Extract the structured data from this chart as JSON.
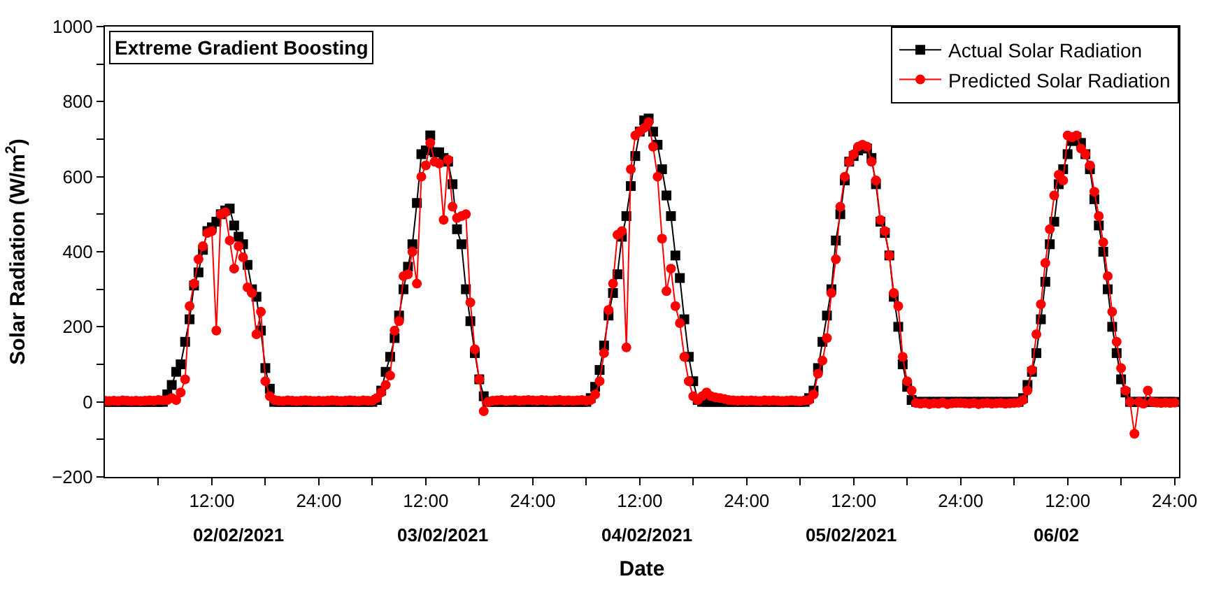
{
  "chart_data": {
    "type": "line",
    "title": "Extreme Gradient Boosting",
    "xlabel": "Date",
    "ylabel": "Solar Radiation (W/m$^{2}$)",
    "annotations": [
      "02/02/2021",
      "03/02/2021",
      "04/02/2021",
      "05/02/2021",
      "06/02"
    ],
    "x": [
      "2021-02-02T00:00",
      "2021-02-02T00:30",
      "2021-02-02T01:00",
      "2021-02-02T01:30",
      "2021-02-02T02:00",
      "2021-02-02T02:30",
      "2021-02-02T03:00",
      "2021-02-02T03:30",
      "2021-02-02T04:00",
      "2021-02-02T04:30",
      "2021-02-02T05:00",
      "2021-02-02T05:30",
      "2021-02-02T06:00",
      "2021-02-02T06:30",
      "2021-02-02T07:00",
      "2021-02-02T07:30",
      "2021-02-02T08:00",
      "2021-02-02T08:30",
      "2021-02-02T09:00",
      "2021-02-02T09:30",
      "2021-02-02T10:00",
      "2021-02-02T10:30",
      "2021-02-02T11:00",
      "2021-02-02T11:30",
      "2021-02-02T12:00",
      "2021-02-02T12:30",
      "2021-02-02T13:00",
      "2021-02-02T13:30",
      "2021-02-02T14:00",
      "2021-02-02T14:30",
      "2021-02-02T15:00",
      "2021-02-02T15:30",
      "2021-02-02T16:00",
      "2021-02-02T16:30",
      "2021-02-02T17:00",
      "2021-02-02T17:30",
      "2021-02-02T18:00",
      "2021-02-02T18:30",
      "2021-02-02T19:00",
      "2021-02-02T19:30",
      "2021-02-02T20:00",
      "2021-02-02T20:30",
      "2021-02-02T21:00",
      "2021-02-02T21:30",
      "2021-02-02T22:00",
      "2021-02-02T22:30",
      "2021-02-02T23:00",
      "2021-02-02T23:30",
      "2021-02-03T00:00",
      "2021-02-03T00:30",
      "2021-02-03T01:00",
      "2021-02-03T01:30",
      "2021-02-03T02:00",
      "2021-02-03T02:30",
      "2021-02-03T03:00",
      "2021-02-03T03:30",
      "2021-02-03T04:00",
      "2021-02-03T04:30",
      "2021-02-03T05:00",
      "2021-02-03T05:30",
      "2021-02-03T06:00",
      "2021-02-03T06:30",
      "2021-02-03T07:00",
      "2021-02-03T07:30",
      "2021-02-03T08:00",
      "2021-02-03T08:30",
      "2021-02-03T09:00",
      "2021-02-03T09:30",
      "2021-02-03T10:00",
      "2021-02-03T10:30",
      "2021-02-03T11:00",
      "2021-02-03T11:30",
      "2021-02-03T12:00",
      "2021-02-03T12:30",
      "2021-02-03T13:00",
      "2021-02-03T13:30",
      "2021-02-03T14:00",
      "2021-02-03T14:30",
      "2021-02-03T15:00",
      "2021-02-03T15:30",
      "2021-02-03T16:00",
      "2021-02-03T16:30",
      "2021-02-03T17:00",
      "2021-02-03T17:30",
      "2021-02-03T18:00",
      "2021-02-03T18:30",
      "2021-02-03T19:00",
      "2021-02-03T19:30",
      "2021-02-03T20:00",
      "2021-02-03T20:30",
      "2021-02-03T21:00",
      "2021-02-03T21:30",
      "2021-02-03T22:00",
      "2021-02-03T22:30",
      "2021-02-03T23:00",
      "2021-02-03T23:30",
      "2021-02-04T00:00",
      "2021-02-04T00:30",
      "2021-02-04T01:00",
      "2021-02-04T01:30",
      "2021-02-04T02:00",
      "2021-02-04T02:30",
      "2021-02-04T03:00",
      "2021-02-04T03:30",
      "2021-02-04T04:00",
      "2021-02-04T04:30",
      "2021-02-04T05:00",
      "2021-02-04T05:30",
      "2021-02-04T06:00",
      "2021-02-04T06:30",
      "2021-02-04T07:00",
      "2021-02-04T07:30",
      "2021-02-04T08:00",
      "2021-02-04T08:30",
      "2021-02-04T09:00",
      "2021-02-04T09:30",
      "2021-02-04T10:00",
      "2021-02-04T10:30",
      "2021-02-04T11:00",
      "2021-02-04T11:30",
      "2021-02-04T12:00",
      "2021-02-04T12:30",
      "2021-02-04T13:00",
      "2021-02-04T13:30",
      "2021-02-04T14:00",
      "2021-02-04T14:30",
      "2021-02-04T15:00",
      "2021-02-04T15:30",
      "2021-02-04T16:00",
      "2021-02-04T16:30",
      "2021-02-04T17:00",
      "2021-02-04T17:30",
      "2021-02-04T18:00",
      "2021-02-04T18:30",
      "2021-02-04T19:00",
      "2021-02-04T19:30",
      "2021-02-04T20:00",
      "2021-02-04T20:30",
      "2021-02-04T21:00",
      "2021-02-04T21:30",
      "2021-02-04T22:00",
      "2021-02-04T22:30",
      "2021-02-04T23:00",
      "2021-02-04T23:30",
      "2021-02-05T00:00",
      "2021-02-05T00:30",
      "2021-02-05T01:00",
      "2021-02-05T01:30",
      "2021-02-05T02:00",
      "2021-02-05T02:30",
      "2021-02-05T03:00",
      "2021-02-05T03:30",
      "2021-02-05T04:00",
      "2021-02-05T04:30",
      "2021-02-05T05:00",
      "2021-02-05T05:30",
      "2021-02-05T06:00",
      "2021-02-05T06:30",
      "2021-02-05T07:00",
      "2021-02-05T07:30",
      "2021-02-05T08:00",
      "2021-02-05T08:30",
      "2021-02-05T09:00",
      "2021-02-05T09:30",
      "2021-02-05T10:00",
      "2021-02-05T10:30",
      "2021-02-05T11:00",
      "2021-02-05T11:30",
      "2021-02-05T12:00",
      "2021-02-05T12:30",
      "2021-02-05T13:00",
      "2021-02-05T13:30",
      "2021-02-05T14:00",
      "2021-02-05T14:30",
      "2021-02-05T15:00",
      "2021-02-05T15:30",
      "2021-02-05T16:00",
      "2021-02-05T16:30",
      "2021-02-05T17:00",
      "2021-02-05T17:30",
      "2021-02-05T18:00",
      "2021-02-05T18:30",
      "2021-02-05T19:00",
      "2021-02-05T19:30",
      "2021-02-05T20:00",
      "2021-02-05T20:30",
      "2021-02-05T21:00",
      "2021-02-05T21:30",
      "2021-02-05T22:00",
      "2021-02-05T22:30",
      "2021-02-05T23:00",
      "2021-02-05T23:30",
      "2021-02-06T00:00",
      "2021-02-06T00:30",
      "2021-02-06T01:00",
      "2021-02-06T01:30",
      "2021-02-06T02:00",
      "2021-02-06T02:30",
      "2021-02-06T03:00",
      "2021-02-06T03:30",
      "2021-02-06T04:00",
      "2021-02-06T04:30",
      "2021-02-06T05:00",
      "2021-02-06T05:30",
      "2021-02-06T06:00",
      "2021-02-06T06:30",
      "2021-02-06T07:00",
      "2021-02-06T07:30",
      "2021-02-06T08:00",
      "2021-02-06T08:30",
      "2021-02-06T09:00",
      "2021-02-06T09:30",
      "2021-02-06T10:00",
      "2021-02-06T10:30",
      "2021-02-06T11:00",
      "2021-02-06T11:30",
      "2021-02-06T12:00",
      "2021-02-06T12:30",
      "2021-02-06T13:00",
      "2021-02-06T13:30",
      "2021-02-06T14:00",
      "2021-02-06T14:30",
      "2021-02-06T15:00",
      "2021-02-06T15:30",
      "2021-02-06T16:00",
      "2021-02-06T16:30",
      "2021-02-06T17:00",
      "2021-02-06T17:30",
      "2021-02-06T18:00",
      "2021-02-06T18:30",
      "2021-02-06T19:00",
      "2021-02-06T19:30",
      "2021-02-06T20:00",
      "2021-02-06T20:30",
      "2021-02-06T21:00",
      "2021-02-06T21:30",
      "2021-02-06T22:00",
      "2021-02-06T22:30",
      "2021-02-06T23:00",
      "2021-02-06T23:30",
      "2021-02-07T00:00"
    ],
    "series": [
      {
        "name": "Actual Solar Radiation",
        "color": "#000000",
        "marker": "square",
        "values": [
          0,
          0,
          0,
          0,
          0,
          0,
          0,
          0,
          0,
          0,
          0,
          0,
          0,
          0,
          20,
          45,
          80,
          100,
          160,
          220,
          310,
          345,
          405,
          455,
          465,
          480,
          500,
          510,
          515,
          470,
          440,
          420,
          365,
          300,
          280,
          190,
          90,
          35,
          0,
          0,
          0,
          0,
          0,
          0,
          0,
          0,
          0,
          0,
          0,
          0,
          0,
          0,
          0,
          0,
          0,
          0,
          0,
          0,
          0,
          0,
          0,
          5,
          30,
          80,
          120,
          170,
          230,
          300,
          360,
          420,
          530,
          660,
          670,
          710,
          665,
          665,
          650,
          640,
          580,
          460,
          420,
          300,
          215,
          130,
          60,
          15,
          0,
          0,
          0,
          0,
          0,
          0,
          0,
          0,
          0,
          0,
          0,
          0,
          0,
          0,
          0,
          0,
          0,
          0,
          0,
          0,
          0,
          0,
          0,
          10,
          40,
          85,
          150,
          230,
          290,
          340,
          440,
          495,
          575,
          655,
          720,
          750,
          755,
          720,
          685,
          620,
          550,
          495,
          390,
          330,
          220,
          120,
          55,
          5,
          0,
          0,
          0,
          0,
          0,
          0,
          0,
          0,
          0,
          0,
          0,
          0,
          0,
          0,
          0,
          0,
          0,
          0,
          0,
          0,
          0,
          0,
          0,
          0,
          10,
          30,
          90,
          160,
          230,
          300,
          430,
          500,
          590,
          640,
          655,
          670,
          680,
          675,
          650,
          580,
          480,
          450,
          390,
          280,
          200,
          100,
          40,
          5,
          0,
          0,
          0,
          0,
          0,
          0,
          0,
          0,
          0,
          0,
          0,
          0,
          0,
          0,
          0,
          0,
          0,
          0,
          0,
          0,
          0,
          0,
          0,
          0,
          10,
          45,
          80,
          130,
          220,
          320,
          420,
          480,
          580,
          620,
          660,
          695,
          705,
          690,
          660,
          620,
          540,
          470,
          400,
          300,
          200,
          130,
          60,
          25,
          0,
          0,
          0,
          0,
          0,
          0,
          0,
          0,
          0,
          0,
          0
        ]
      },
      {
        "name": "Predicted Solar Radiation",
        "color": "#ff0000",
        "marker": "circle",
        "values": [
          3,
          2,
          3,
          2,
          4,
          3,
          2,
          3,
          2,
          3,
          4,
          3,
          5,
          4,
          5,
          10,
          5,
          25,
          60,
          255,
          315,
          380,
          415,
          450,
          455,
          190,
          500,
          505,
          430,
          355,
          415,
          385,
          305,
          290,
          180,
          240,
          55,
          15,
          5,
          3,
          2,
          4,
          3,
          2,
          3,
          4,
          3,
          2,
          3,
          2,
          3,
          4,
          3,
          2,
          3,
          4,
          3,
          2,
          4,
          3,
          3,
          10,
          25,
          45,
          70,
          190,
          215,
          335,
          340,
          400,
          315,
          600,
          630,
          690,
          640,
          635,
          485,
          645,
          520,
          490,
          495,
          500,
          265,
          140,
          60,
          -25,
          0,
          3,
          4,
          5,
          3,
          4,
          5,
          3,
          4,
          5,
          4,
          3,
          5,
          4,
          3,
          4,
          5,
          3,
          4,
          3,
          4,
          5,
          3,
          5,
          20,
          55,
          130,
          245,
          315,
          445,
          455,
          145,
          620,
          710,
          720,
          730,
          745,
          680,
          600,
          435,
          295,
          355,
          255,
          210,
          120,
          55,
          15,
          5,
          15,
          25,
          15,
          12,
          10,
          8,
          5,
          4,
          3,
          4,
          3,
          4,
          3,
          2,
          4,
          3,
          4,
          3,
          2,
          3,
          4,
          3,
          2,
          4,
          5,
          20,
          75,
          110,
          170,
          290,
          380,
          520,
          600,
          640,
          660,
          680,
          685,
          680,
          640,
          590,
          485,
          455,
          390,
          290,
          255,
          120,
          55,
          30,
          -3,
          -5,
          -3,
          -6,
          -4,
          -5,
          -2,
          -6,
          -4,
          -3,
          -3,
          -4,
          -5,
          -3,
          -6,
          -4,
          -3,
          -5,
          -4,
          -3,
          -5,
          -4,
          -3,
          -2,
          5,
          30,
          85,
          180,
          260,
          370,
          460,
          550,
          605,
          590,
          710,
          705,
          710,
          675,
          660,
          630,
          560,
          495,
          425,
          335,
          240,
          160,
          90,
          30,
          0,
          -85,
          0,
          -5,
          30,
          0,
          -2,
          -3,
          -2,
          -3,
          -2
        ]
      }
    ],
    "xlim": [
      "2021-02-02T00:00",
      "2021-02-07T00:30"
    ],
    "xticks": [
      {
        "value": "2021-02-02T06:00",
        "label": null
      },
      {
        "value": "2021-02-02T12:00",
        "label": "12:00"
      },
      {
        "value": "2021-02-02T18:00",
        "label": null
      },
      {
        "value": "2021-02-03T00:00",
        "label": "24:00"
      },
      {
        "value": "2021-02-03T06:00",
        "label": null
      },
      {
        "value": "2021-02-03T12:00",
        "label": "12:00"
      },
      {
        "value": "2021-02-03T18:00",
        "label": null
      },
      {
        "value": "2021-02-04T00:00",
        "label": "24:00"
      },
      {
        "value": "2021-02-04T06:00",
        "label": null
      },
      {
        "value": "2021-02-04T12:00",
        "label": "12:00"
      },
      {
        "value": "2021-02-04T18:00",
        "label": null
      },
      {
        "value": "2021-02-05T00:00",
        "label": "24:00"
      },
      {
        "value": "2021-02-05T06:00",
        "label": null
      },
      {
        "value": "2021-02-05T12:00",
        "label": "12:00"
      },
      {
        "value": "2021-02-05T18:00",
        "label": null
      },
      {
        "value": "2021-02-06T00:00",
        "label": "24:00"
      },
      {
        "value": "2021-02-06T06:00",
        "label": null
      },
      {
        "value": "2021-02-06T12:00",
        "label": "12:00"
      },
      {
        "value": "2021-02-06T18:00",
        "label": null
      },
      {
        "value": "2021-02-07T00:00",
        "label": "24:00"
      }
    ],
    "ylim": [
      -200,
      1000
    ],
    "yticks": [
      {
        "value": -200,
        "label": "−200"
      },
      {
        "value": -100,
        "label": null
      },
      0,
      {
        "value": 100,
        "label": null
      },
      200,
      {
        "value": 300,
        "label": null
      },
      400,
      {
        "value": 500,
        "label": null
      },
      600,
      {
        "value": 700,
        "label": null
      },
      800,
      {
        "value": 900,
        "label": null
      },
      1000
    ],
    "legend": "top right",
    "line_style": "solid"
  }
}
